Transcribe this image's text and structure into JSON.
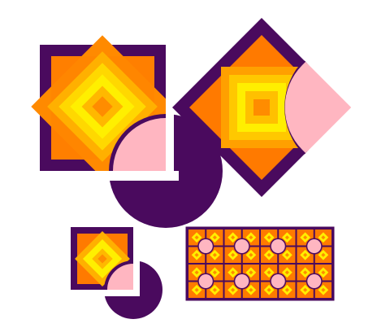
{
  "colors": {
    "background": "#ffffff",
    "frame": "#4a0a5e",
    "gradient_outer": "#ff7a00",
    "gradient_inner": "#ffef00",
    "gradient_center": "#ff8c00",
    "notch": "#ffb6c1",
    "notch_outline": "#4a0a5e"
  },
  "tiles": [
    {
      "name": "large-tile",
      "rotation_deg": 0
    },
    {
      "name": "rotated-large-tile",
      "rotation_deg": 45
    },
    {
      "name": "small-tile",
      "rotation_deg": 0
    },
    {
      "name": "tiled-pattern",
      "columns": 8,
      "rows": 4
    }
  ]
}
